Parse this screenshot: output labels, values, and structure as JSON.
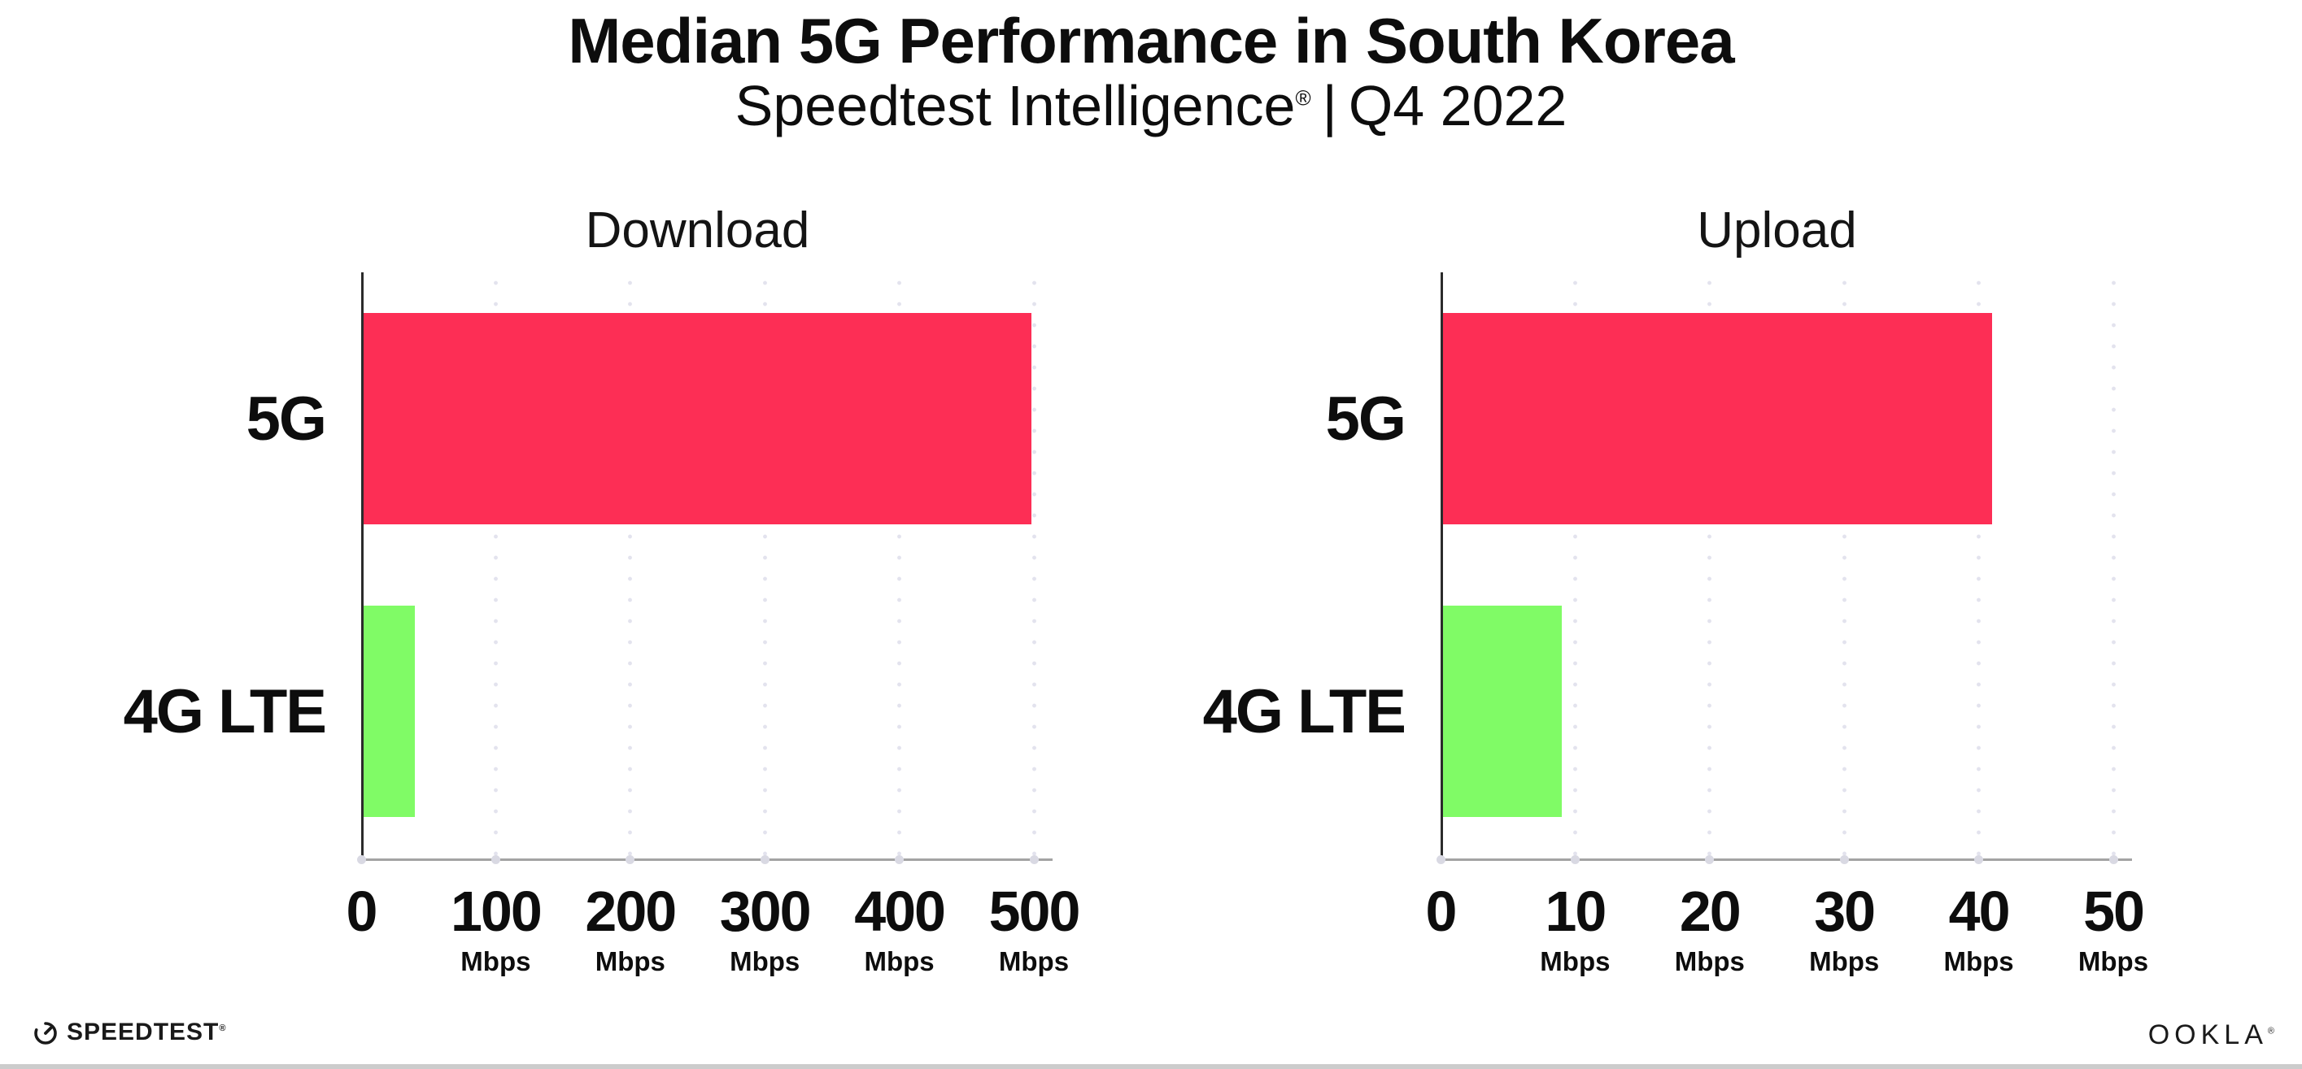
{
  "header": {
    "title": "Median 5G Performance in South Korea",
    "subtitle_brand": "Speedtest Intelligence",
    "subtitle_reg": "®",
    "subtitle_rest": "Q4 2022",
    "subtitle_separator": "|"
  },
  "colors": {
    "bar_5g": "#FD2E55",
    "bar_4g": "#80FB66",
    "axis_y": "#2b2b2b",
    "axis_x": "#a3a3a3",
    "gridline": "#e3e3ee",
    "tick_dot": "#d9d9e3",
    "text": "#0d0d0d",
    "rule": "#cccccc"
  },
  "chart_data": [
    {
      "type": "bar",
      "orientation": "horizontal",
      "title": "Download",
      "categories": [
        "5G",
        "4G LTE"
      ],
      "values": [
        498,
        40
      ],
      "unit": "Mbps",
      "xlim": [
        0,
        500
      ],
      "xticks": [
        0,
        100,
        200,
        300,
        400,
        500
      ],
      "grid": "dotted-vertical",
      "legend": "none",
      "bar_colors": [
        "#FD2E55",
        "#80FB66"
      ]
    },
    {
      "type": "bar",
      "orientation": "horizontal",
      "title": "Upload",
      "categories": [
        "5G",
        "4G LTE"
      ],
      "values": [
        41,
        9
      ],
      "unit": "Mbps",
      "xlim": [
        0,
        50
      ],
      "xticks": [
        0,
        10,
        20,
        30,
        40,
        50
      ],
      "grid": "dotted-vertical",
      "legend": "none",
      "bar_colors": [
        "#FD2E55",
        "#80FB66"
      ]
    }
  ],
  "footer": {
    "speedtest_wordmark": "SPEEDTEST",
    "speedtest_reg": "®",
    "ookla_wordmark": "OOKLA",
    "ookla_reg": "®"
  }
}
